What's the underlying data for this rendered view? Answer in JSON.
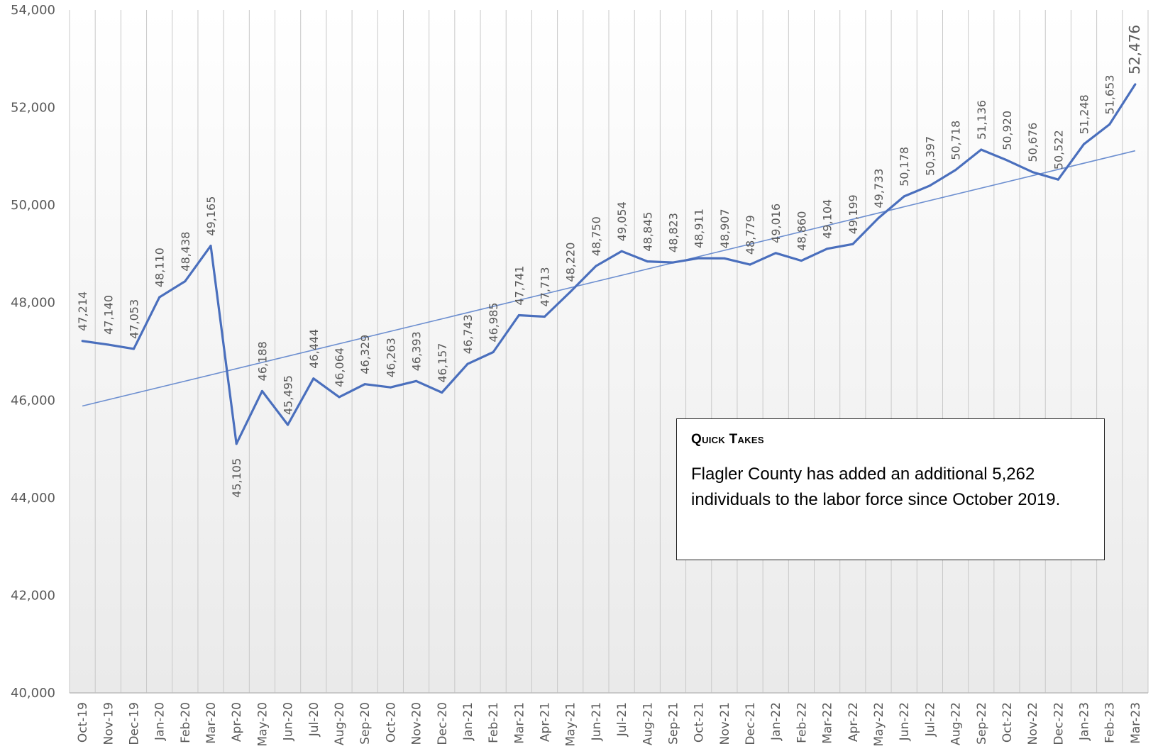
{
  "chart_data": {
    "type": "line",
    "title": "",
    "xlabel": "",
    "ylabel": "",
    "ylim": [
      40000,
      54000
    ],
    "yticks": [
      "40,000",
      "42,000",
      "44,000",
      "46,000",
      "48,000",
      "50,000",
      "52,000",
      "54,000"
    ],
    "grid": "vertical",
    "trendline": true,
    "categories": [
      "Oct-19",
      "Nov-19",
      "Dec-19",
      "Jan-20",
      "Feb-20",
      "Mar-20",
      "Apr-20",
      "May-20",
      "Jun-20",
      "Jul-20",
      "Aug-20",
      "Sep-20",
      "Oct-20",
      "Nov-20",
      "Dec-20",
      "Jan-21",
      "Feb-21",
      "Mar-21",
      "Apr-21",
      "May-21",
      "Jun-21",
      "Jul-21",
      "Aug-21",
      "Sep-21",
      "Oct-21",
      "Nov-21",
      "Dec-21",
      "Jan-22",
      "Feb-22",
      "Mar-22",
      "Apr-22",
      "May-22",
      "Jun-22",
      "Jul-22",
      "Aug-22",
      "Sep-22",
      "Oct-22",
      "Nov-22",
      "Dec-22",
      "Jan-23",
      "Feb-23",
      "Mar-23"
    ],
    "values": [
      47214,
      47140,
      47053,
      48110,
      48438,
      49165,
      45105,
      46188,
      45495,
      46444,
      46064,
      46329,
      46263,
      46393,
      46157,
      46743,
      46985,
      47741,
      47713,
      48220,
      48750,
      49054,
      48845,
      48823,
      48911,
      48907,
      48779,
      49016,
      48860,
      49104,
      49199,
      49733,
      50178,
      50397,
      50718,
      51136,
      50920,
      50676,
      50522,
      51248,
      51653,
      52476
    ],
    "data_labels": [
      "47,214",
      "47,140",
      "47,053",
      "48,110",
      "48,438",
      "49,165",
      "45,105",
      "46,188",
      "45,495",
      "46,444",
      "46,064",
      "46,329",
      "46,263",
      "46,393",
      "46,157",
      "46,743",
      "46,985",
      "47,741",
      "47,713",
      "48,220",
      "48,750",
      "49,054",
      "48,845",
      "48,823",
      "48,911",
      "48,907",
      "48,779",
      "49,016",
      "48,860",
      "49,104",
      "49,199",
      "49,733",
      "50,178",
      "50,397",
      "50,718",
      "51,136",
      "50,920",
      "50,676",
      "50,522",
      "51,248",
      "51,653",
      "52,476"
    ],
    "colors": {
      "line": "#4a6fbd",
      "trend": "#6d8fd0",
      "grid": "#c8c8c8",
      "label": "#595959",
      "gradient_bottom": "#eaeaea"
    }
  },
  "quick_takes": {
    "title": "Quick Takes",
    "body": "Flagler County has added an additional 5,262 individuals to the labor force since October 2019."
  }
}
